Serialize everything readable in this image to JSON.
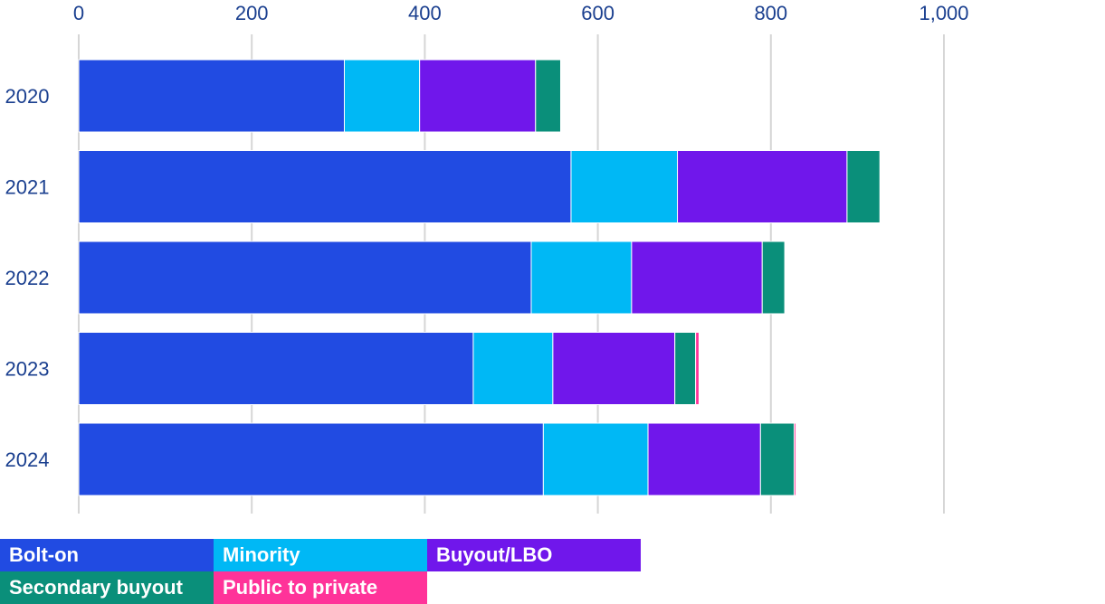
{
  "chart_data": {
    "type": "bar",
    "orientation": "horizontal",
    "stacked": true,
    "categories": [
      "2020",
      "2021",
      "2022",
      "2023",
      "2024"
    ],
    "xlim": [
      0,
      1000
    ],
    "xticks": [
      0,
      200,
      400,
      600,
      800,
      1000
    ],
    "xtick_labels": [
      "0",
      "200",
      "400",
      "600",
      "800",
      "1,000"
    ],
    "grid": true,
    "legend_placement": "bottom",
    "series": [
      {
        "name": "Bolt-on",
        "color": "#214BE2",
        "values": [
          307,
          569,
          523,
          456,
          537
        ]
      },
      {
        "name": "Minority",
        "color": "#00B8F5",
        "values": [
          87,
          123,
          116,
          92,
          121
        ]
      },
      {
        "name": "Buyout/LBO",
        "color": "#7017EB",
        "values": [
          134,
          196,
          151,
          141,
          130
        ]
      },
      {
        "name": "Secondary buyout",
        "color": "#0A8F7A",
        "values": [
          29,
          38,
          26,
          24,
          39
        ]
      },
      {
        "name": "Public to private",
        "color": "#FF3399",
        "values": [
          0,
          0,
          0,
          4,
          2
        ]
      }
    ]
  }
}
